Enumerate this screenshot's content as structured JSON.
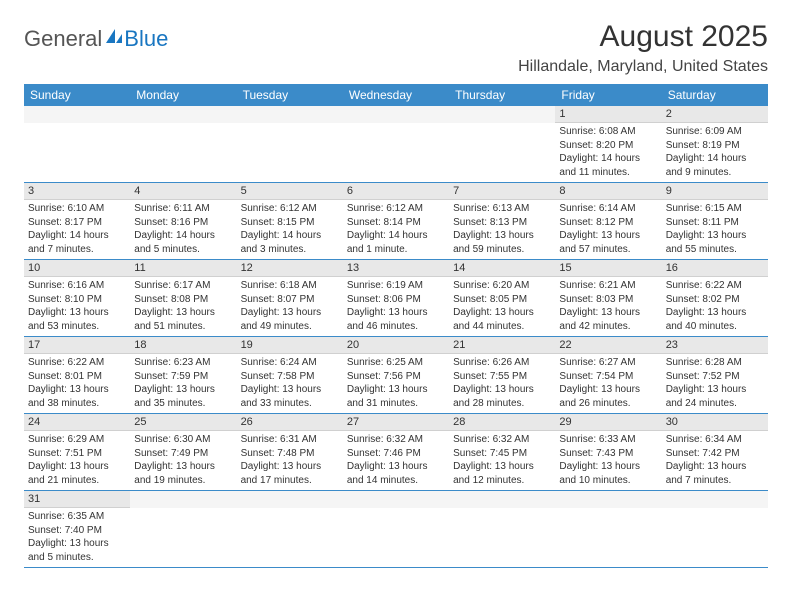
{
  "logo": {
    "text1": "General",
    "text2": "Blue"
  },
  "title": "August 2025",
  "location": "Hillandale, Maryland, United States",
  "weekdays": [
    "Sunday",
    "Monday",
    "Tuesday",
    "Wednesday",
    "Thursday",
    "Friday",
    "Saturday"
  ],
  "colors": {
    "header_bg": "#3b8bc9",
    "header_text": "#ffffff",
    "daynum_bg": "#e8e8e8",
    "border": "#3b8bc9",
    "logo_gray": "#555555",
    "logo_blue": "#1976c1"
  },
  "weeks": [
    [
      null,
      null,
      null,
      null,
      null,
      {
        "n": "1",
        "sr": "Sunrise: 6:08 AM",
        "ss": "Sunset: 8:20 PM",
        "dl": "Daylight: 14 hours and 11 minutes."
      },
      {
        "n": "2",
        "sr": "Sunrise: 6:09 AM",
        "ss": "Sunset: 8:19 PM",
        "dl": "Daylight: 14 hours and 9 minutes."
      }
    ],
    [
      {
        "n": "3",
        "sr": "Sunrise: 6:10 AM",
        "ss": "Sunset: 8:17 PM",
        "dl": "Daylight: 14 hours and 7 minutes."
      },
      {
        "n": "4",
        "sr": "Sunrise: 6:11 AM",
        "ss": "Sunset: 8:16 PM",
        "dl": "Daylight: 14 hours and 5 minutes."
      },
      {
        "n": "5",
        "sr": "Sunrise: 6:12 AM",
        "ss": "Sunset: 8:15 PM",
        "dl": "Daylight: 14 hours and 3 minutes."
      },
      {
        "n": "6",
        "sr": "Sunrise: 6:12 AM",
        "ss": "Sunset: 8:14 PM",
        "dl": "Daylight: 14 hours and 1 minute."
      },
      {
        "n": "7",
        "sr": "Sunrise: 6:13 AM",
        "ss": "Sunset: 8:13 PM",
        "dl": "Daylight: 13 hours and 59 minutes."
      },
      {
        "n": "8",
        "sr": "Sunrise: 6:14 AM",
        "ss": "Sunset: 8:12 PM",
        "dl": "Daylight: 13 hours and 57 minutes."
      },
      {
        "n": "9",
        "sr": "Sunrise: 6:15 AM",
        "ss": "Sunset: 8:11 PM",
        "dl": "Daylight: 13 hours and 55 minutes."
      }
    ],
    [
      {
        "n": "10",
        "sr": "Sunrise: 6:16 AM",
        "ss": "Sunset: 8:10 PM",
        "dl": "Daylight: 13 hours and 53 minutes."
      },
      {
        "n": "11",
        "sr": "Sunrise: 6:17 AM",
        "ss": "Sunset: 8:08 PM",
        "dl": "Daylight: 13 hours and 51 minutes."
      },
      {
        "n": "12",
        "sr": "Sunrise: 6:18 AM",
        "ss": "Sunset: 8:07 PM",
        "dl": "Daylight: 13 hours and 49 minutes."
      },
      {
        "n": "13",
        "sr": "Sunrise: 6:19 AM",
        "ss": "Sunset: 8:06 PM",
        "dl": "Daylight: 13 hours and 46 minutes."
      },
      {
        "n": "14",
        "sr": "Sunrise: 6:20 AM",
        "ss": "Sunset: 8:05 PM",
        "dl": "Daylight: 13 hours and 44 minutes."
      },
      {
        "n": "15",
        "sr": "Sunrise: 6:21 AM",
        "ss": "Sunset: 8:03 PM",
        "dl": "Daylight: 13 hours and 42 minutes."
      },
      {
        "n": "16",
        "sr": "Sunrise: 6:22 AM",
        "ss": "Sunset: 8:02 PM",
        "dl": "Daylight: 13 hours and 40 minutes."
      }
    ],
    [
      {
        "n": "17",
        "sr": "Sunrise: 6:22 AM",
        "ss": "Sunset: 8:01 PM",
        "dl": "Daylight: 13 hours and 38 minutes."
      },
      {
        "n": "18",
        "sr": "Sunrise: 6:23 AM",
        "ss": "Sunset: 7:59 PM",
        "dl": "Daylight: 13 hours and 35 minutes."
      },
      {
        "n": "19",
        "sr": "Sunrise: 6:24 AM",
        "ss": "Sunset: 7:58 PM",
        "dl": "Daylight: 13 hours and 33 minutes."
      },
      {
        "n": "20",
        "sr": "Sunrise: 6:25 AM",
        "ss": "Sunset: 7:56 PM",
        "dl": "Daylight: 13 hours and 31 minutes."
      },
      {
        "n": "21",
        "sr": "Sunrise: 6:26 AM",
        "ss": "Sunset: 7:55 PM",
        "dl": "Daylight: 13 hours and 28 minutes."
      },
      {
        "n": "22",
        "sr": "Sunrise: 6:27 AM",
        "ss": "Sunset: 7:54 PM",
        "dl": "Daylight: 13 hours and 26 minutes."
      },
      {
        "n": "23",
        "sr": "Sunrise: 6:28 AM",
        "ss": "Sunset: 7:52 PM",
        "dl": "Daylight: 13 hours and 24 minutes."
      }
    ],
    [
      {
        "n": "24",
        "sr": "Sunrise: 6:29 AM",
        "ss": "Sunset: 7:51 PM",
        "dl": "Daylight: 13 hours and 21 minutes."
      },
      {
        "n": "25",
        "sr": "Sunrise: 6:30 AM",
        "ss": "Sunset: 7:49 PM",
        "dl": "Daylight: 13 hours and 19 minutes."
      },
      {
        "n": "26",
        "sr": "Sunrise: 6:31 AM",
        "ss": "Sunset: 7:48 PM",
        "dl": "Daylight: 13 hours and 17 minutes."
      },
      {
        "n": "27",
        "sr": "Sunrise: 6:32 AM",
        "ss": "Sunset: 7:46 PM",
        "dl": "Daylight: 13 hours and 14 minutes."
      },
      {
        "n": "28",
        "sr": "Sunrise: 6:32 AM",
        "ss": "Sunset: 7:45 PM",
        "dl": "Daylight: 13 hours and 12 minutes."
      },
      {
        "n": "29",
        "sr": "Sunrise: 6:33 AM",
        "ss": "Sunset: 7:43 PM",
        "dl": "Daylight: 13 hours and 10 minutes."
      },
      {
        "n": "30",
        "sr": "Sunrise: 6:34 AM",
        "ss": "Sunset: 7:42 PM",
        "dl": "Daylight: 13 hours and 7 minutes."
      }
    ],
    [
      {
        "n": "31",
        "sr": "Sunrise: 6:35 AM",
        "ss": "Sunset: 7:40 PM",
        "dl": "Daylight: 13 hours and 5 minutes."
      },
      null,
      null,
      null,
      null,
      null,
      null
    ]
  ]
}
